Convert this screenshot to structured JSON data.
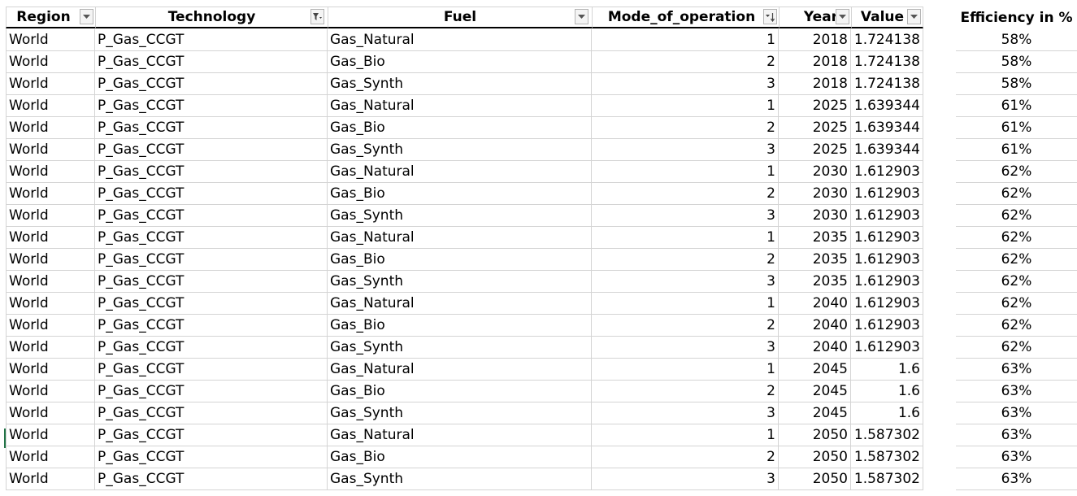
{
  "headers": {
    "region": "Region",
    "technology": "Technology",
    "fuel": "Fuel",
    "mode": "Mode_of_operation",
    "year": "Year",
    "value": "Value",
    "efficiency": "Efficiency in %"
  },
  "filters": {
    "region": "dropdown-icon",
    "technology": "filter-active-icon",
    "fuel": "dropdown-icon",
    "mode": "sort-ascending-icon",
    "year": "dropdown-icon",
    "value": "dropdown-icon"
  },
  "colors": {
    "selection": "#217346",
    "gridline": "#d4d4d4"
  },
  "rows": [
    {
      "region": "World",
      "technology": "P_Gas_CCGT",
      "fuel": "Gas_Natural",
      "mode": "1",
      "year": "2018",
      "value": "1.724138",
      "efficiency": "58%"
    },
    {
      "region": "World",
      "technology": "P_Gas_CCGT",
      "fuel": "Gas_Bio",
      "mode": "2",
      "year": "2018",
      "value": "1.724138",
      "efficiency": "58%"
    },
    {
      "region": "World",
      "technology": "P_Gas_CCGT",
      "fuel": "Gas_Synth",
      "mode": "3",
      "year": "2018",
      "value": "1.724138",
      "efficiency": "58%"
    },
    {
      "region": "World",
      "technology": "P_Gas_CCGT",
      "fuel": "Gas_Natural",
      "mode": "1",
      "year": "2025",
      "value": "1.639344",
      "efficiency": "61%"
    },
    {
      "region": "World",
      "technology": "P_Gas_CCGT",
      "fuel": "Gas_Bio",
      "mode": "2",
      "year": "2025",
      "value": "1.639344",
      "efficiency": "61%"
    },
    {
      "region": "World",
      "technology": "P_Gas_CCGT",
      "fuel": "Gas_Synth",
      "mode": "3",
      "year": "2025",
      "value": "1.639344",
      "efficiency": "61%"
    },
    {
      "region": "World",
      "technology": "P_Gas_CCGT",
      "fuel": "Gas_Natural",
      "mode": "1",
      "year": "2030",
      "value": "1.612903",
      "efficiency": "62%"
    },
    {
      "region": "World",
      "technology": "P_Gas_CCGT",
      "fuel": "Gas_Bio",
      "mode": "2",
      "year": "2030",
      "value": "1.612903",
      "efficiency": "62%"
    },
    {
      "region": "World",
      "technology": "P_Gas_CCGT",
      "fuel": "Gas_Synth",
      "mode": "3",
      "year": "2030",
      "value": "1.612903",
      "efficiency": "62%"
    },
    {
      "region": "World",
      "technology": "P_Gas_CCGT",
      "fuel": "Gas_Natural",
      "mode": "1",
      "year": "2035",
      "value": "1.612903",
      "efficiency": "62%"
    },
    {
      "region": "World",
      "technology": "P_Gas_CCGT",
      "fuel": "Gas_Bio",
      "mode": "2",
      "year": "2035",
      "value": "1.612903",
      "efficiency": "62%"
    },
    {
      "region": "World",
      "technology": "P_Gas_CCGT",
      "fuel": "Gas_Synth",
      "mode": "3",
      "year": "2035",
      "value": "1.612903",
      "efficiency": "62%"
    },
    {
      "region": "World",
      "technology": "P_Gas_CCGT",
      "fuel": "Gas_Natural",
      "mode": "1",
      "year": "2040",
      "value": "1.612903",
      "efficiency": "62%"
    },
    {
      "region": "World",
      "technology": "P_Gas_CCGT",
      "fuel": "Gas_Bio",
      "mode": "2",
      "year": "2040",
      "value": "1.612903",
      "efficiency": "62%"
    },
    {
      "region": "World",
      "technology": "P_Gas_CCGT",
      "fuel": "Gas_Synth",
      "mode": "3",
      "year": "2040",
      "value": "1.612903",
      "efficiency": "62%"
    },
    {
      "region": "World",
      "technology": "P_Gas_CCGT",
      "fuel": "Gas_Natural",
      "mode": "1",
      "year": "2045",
      "value": "1.6",
      "efficiency": "63%"
    },
    {
      "region": "World",
      "technology": "P_Gas_CCGT",
      "fuel": "Gas_Bio",
      "mode": "2",
      "year": "2045",
      "value": "1.6",
      "efficiency": "63%"
    },
    {
      "region": "World",
      "technology": "P_Gas_CCGT",
      "fuel": "Gas_Synth",
      "mode": "3",
      "year": "2045",
      "value": "1.6",
      "efficiency": "63%"
    },
    {
      "region": "World",
      "technology": "P_Gas_CCGT",
      "fuel": "Gas_Natural",
      "mode": "1",
      "year": "2050",
      "value": "1.587302",
      "efficiency": "63%"
    },
    {
      "region": "World",
      "technology": "P_Gas_CCGT",
      "fuel": "Gas_Bio",
      "mode": "2",
      "year": "2050",
      "value": "1.587302",
      "efficiency": "63%"
    },
    {
      "region": "World",
      "technology": "P_Gas_CCGT",
      "fuel": "Gas_Synth",
      "mode": "3",
      "year": "2050",
      "value": "1.587302",
      "efficiency": "63%"
    }
  ]
}
